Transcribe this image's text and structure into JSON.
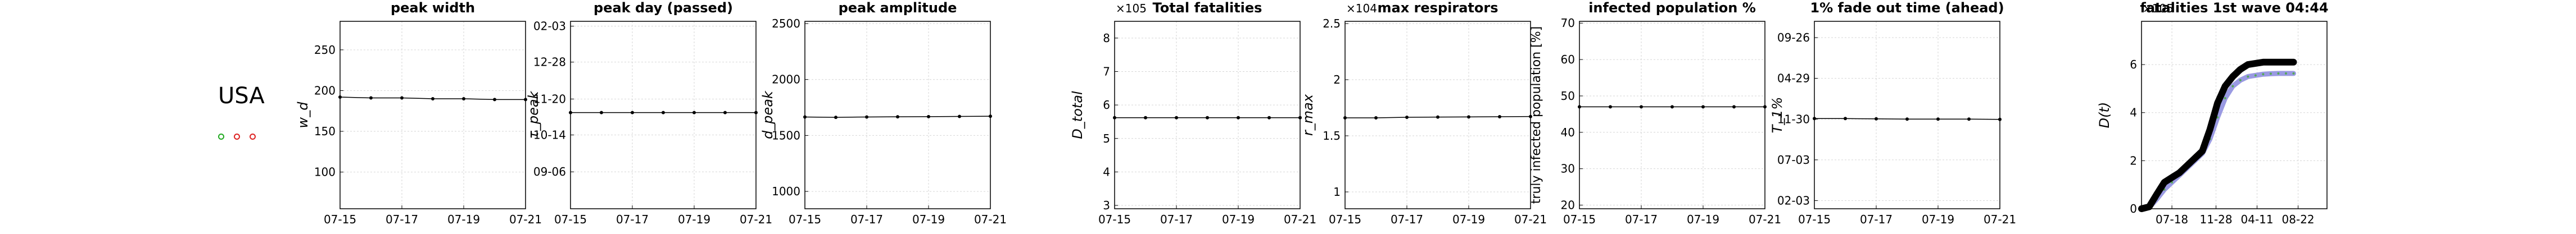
{
  "country": "USA",
  "status_dots": [
    {
      "color": "#22aa22"
    },
    {
      "color": "#dd2222"
    },
    {
      "color": "#dd2222"
    }
  ],
  "chart_data": [
    {
      "type": "line",
      "title": "peak width",
      "ylabel": "w_d",
      "x": [
        "07-15",
        "07-16",
        "07-17",
        "07-18",
        "07-19",
        "07-20",
        "07-21"
      ],
      "xticks": [
        "07-15",
        "07-17",
        "07-19",
        "07-21"
      ],
      "yticks": [
        "100",
        "150",
        "200",
        "250"
      ],
      "ytick_values": [
        100,
        150,
        200,
        250
      ],
      "ylim": [
        55,
        285
      ],
      "exponent": "",
      "series": [
        {
          "values": [
            192,
            191,
            191,
            190,
            190,
            189,
            189
          ]
        }
      ]
    },
    {
      "type": "line",
      "title": "peak day (passed)",
      "ylabel": "τ_peak",
      "x": [
        "07-15",
        "07-16",
        "07-17",
        "07-18",
        "07-19",
        "07-20",
        "07-21"
      ],
      "xticks": [
        "07-15",
        "07-17",
        "07-19",
        "07-21"
      ],
      "yticks": [
        "09-06",
        "10-14",
        "11-20",
        "12-28",
        "02-03"
      ],
      "ytick_values": [
        0,
        38,
        75,
        113,
        150
      ],
      "ylim": [
        -38,
        155
      ],
      "exponent": "",
      "series": [
        {
          "values": [
            61,
            61,
            61,
            61,
            61,
            61,
            61
          ]
        }
      ]
    },
    {
      "type": "line",
      "title": "peak amplitude",
      "ylabel": "d_peak",
      "x": [
        "07-15",
        "07-16",
        "07-17",
        "07-18",
        "07-19",
        "07-20",
        "07-21"
      ],
      "xticks": [
        "07-15",
        "07-17",
        "07-19",
        "07-21"
      ],
      "yticks": [
        "1000",
        "1500",
        "2000",
        "2500"
      ],
      "ytick_values": [
        1000,
        1500,
        2000,
        2500
      ],
      "ylim": [
        845,
        2520
      ],
      "exponent": "",
      "series": [
        {
          "values": [
            1665,
            1662,
            1665,
            1667,
            1668,
            1670,
            1672
          ]
        }
      ]
    },
    {
      "type": "line",
      "title": "Total fatalities",
      "ylabel": "D_total",
      "x": [
        "07-15",
        "07-16",
        "07-17",
        "07-18",
        "07-19",
        "07-20",
        "07-21"
      ],
      "xticks": [
        "07-15",
        "07-17",
        "07-19",
        "07-21"
      ],
      "yticks": [
        "3",
        "4",
        "5",
        "6",
        "7",
        "8"
      ],
      "ytick_values": [
        3,
        4,
        5,
        6,
        7,
        8
      ],
      "ylim": [
        2.9,
        8.5
      ],
      "exponent": "×10^5",
      "series": [
        {
          "values": [
            5.62,
            5.62,
            5.62,
            5.62,
            5.62,
            5.62,
            5.62
          ]
        }
      ]
    },
    {
      "type": "line",
      "title": "max respirators",
      "ylabel": "r_max",
      "x": [
        "07-15",
        "07-16",
        "07-17",
        "07-18",
        "07-19",
        "07-20",
        "07-21"
      ],
      "xticks": [
        "07-15",
        "07-17",
        "07-19",
        "07-21"
      ],
      "yticks": [
        "1",
        "1.5",
        "2",
        "2.5"
      ],
      "ytick_values": [
        1,
        1.5,
        2,
        2.5
      ],
      "ylim": [
        0.85,
        2.52
      ],
      "exponent": "×10^4",
      "series": [
        {
          "values": [
            1.66,
            1.66,
            1.665,
            1.667,
            1.668,
            1.67,
            1.672
          ]
        }
      ]
    },
    {
      "type": "line",
      "title": "infected population %",
      "ylabel": "truly infected population [%]",
      "x": [
        "07-15",
        "07-16",
        "07-17",
        "07-18",
        "07-19",
        "07-20",
        "07-21"
      ],
      "xticks": [
        "07-15",
        "07-17",
        "07-19",
        "07-21"
      ],
      "yticks": [
        "20",
        "30",
        "40",
        "50",
        "60",
        "70"
      ],
      "ytick_values": [
        20,
        30,
        40,
        50,
        60,
        70
      ],
      "ylim": [
        19,
        70.5
      ],
      "exponent": "",
      "series": [
        {
          "values": [
            47,
            47,
            47,
            47,
            47,
            47,
            47
          ]
        }
      ]
    },
    {
      "type": "line",
      "title": "1% fade out time (ahead)",
      "ylabel": "T_1%",
      "x": [
        "07-15",
        "07-16",
        "07-17",
        "07-18",
        "07-19",
        "07-20",
        "07-21"
      ],
      "xticks": [
        "07-15",
        "07-17",
        "07-19",
        "07-21"
      ],
      "yticks": [
        "02-03",
        "07-03",
        "11-30",
        "04-29",
        "09-26"
      ],
      "ytick_values": [
        0,
        150,
        300,
        450,
        600
      ],
      "ylim": [
        -30,
        660
      ],
      "exponent": "",
      "series": [
        {
          "values": [
            302,
            302,
            301,
            300,
            300,
            300,
            299
          ]
        }
      ]
    },
    {
      "type": "line",
      "title": "fatalities 1st wave 04:44",
      "ylabel": "D(t)",
      "x": [
        0,
        0.5,
        1,
        1.5,
        2,
        2.5,
        3,
        3.5,
        4,
        4.5,
        5,
        5.5,
        6,
        6.5,
        7,
        7.5,
        8,
        8.5,
        9,
        9.5,
        10
      ],
      "xticks": [
        "07-18",
        "11-28",
        "04-11",
        "08-22"
      ],
      "xtick_values": [
        2,
        4.9,
        7.6,
        10.3
      ],
      "yticks": [
        "0",
        "2",
        "4",
        "6"
      ],
      "ytick_values": [
        0,
        2,
        4,
        6
      ],
      "ylim": [
        0,
        7.8
      ],
      "xlim": [
        0,
        12.2
      ],
      "exponent": "×10^5",
      "series": [
        {
          "values": [
            0,
            0.08,
            0.6,
            1.1,
            1.3,
            1.5,
            1.8,
            2.1,
            2.4,
            3.3,
            4.4,
            5.1,
            5.5,
            5.8,
            6.0,
            6.05,
            6.1,
            6.1,
            6.1,
            6.1,
            6.1
          ]
        },
        {
          "values": [
            0,
            0.05,
            0.4,
            0.8,
            1.1,
            1.4,
            1.7,
            2.0,
            2.3,
            2.9,
            3.8,
            4.6,
            5.1,
            5.35,
            5.5,
            5.55,
            5.6,
            5.62,
            5.63,
            5.63,
            5.63
          ]
        }
      ]
    }
  ]
}
